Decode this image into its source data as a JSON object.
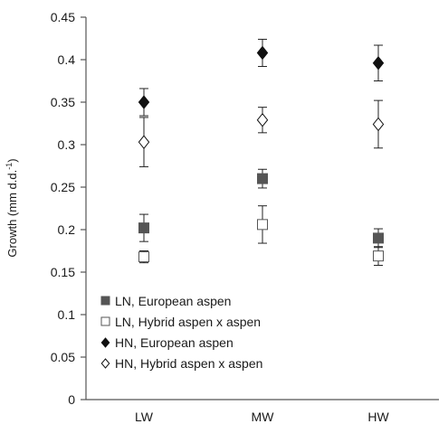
{
  "chart_data": {
    "type": "scatter",
    "ylabel_main": "Growth (mm d.d.",
    "ylabel_sup": "-1",
    "ylabel_close": ")",
    "ylim": [
      0,
      0.45
    ],
    "yticks": [
      "0",
      "0.05",
      "0.1",
      "0.15",
      "0.2",
      "0.25",
      "0.3",
      "0.35",
      "0.4",
      "0.45"
    ],
    "categories": [
      "LW",
      "MW",
      "HW"
    ],
    "grid": false,
    "legend_position": "bottom-left",
    "series": [
      {
        "name": "LN, European aspen",
        "marker": "square-filled",
        "color": "#555555",
        "values": [
          0.202,
          0.26,
          0.19
        ],
        "errors": [
          0.016,
          0.011,
          0.011
        ]
      },
      {
        "name": "LN, Hybrid aspen x aspen",
        "marker": "square-open",
        "color": "#555555",
        "values": [
          0.168,
          0.206,
          0.169
        ],
        "errors": [
          0.007,
          0.022,
          0.011
        ]
      },
      {
        "name": "HN, European aspen",
        "marker": "diamond-filled",
        "color": "#111111",
        "values": [
          0.35,
          0.408,
          0.396
        ],
        "errors": [
          0.016,
          0.016,
          0.021
        ]
      },
      {
        "name": "HN, Hybrid aspen x aspen",
        "marker": "diamond-open",
        "color": "#111111",
        "values": [
          0.303,
          0.329,
          0.324
        ],
        "errors": [
          0.029,
          0.015,
          0.028
        ]
      }
    ]
  }
}
